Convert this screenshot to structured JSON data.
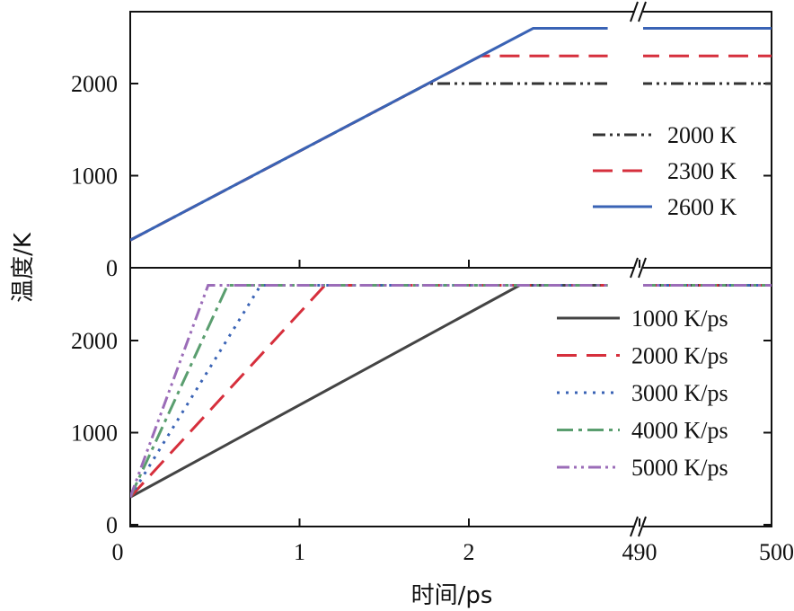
{
  "chart_data": [
    {
      "type": "line",
      "panel": "top",
      "xlabel": "",
      "ylabel": "温度/K",
      "ylim": [
        0,
        2850
      ],
      "yticks": [
        "0",
        "1000",
        "2000"
      ],
      "x_axis": "broken (0–2.8 ps, then 490–500 ps)",
      "legend_position": "right",
      "series": [
        {
          "name": "2000 K",
          "color": "#333333",
          "dash": "dash-dot-dot",
          "points": [
            [
              0,
              300
            ],
            [
              1.76,
              2000
            ],
            [
              500,
              2000
            ]
          ]
        },
        {
          "name": "2300 K",
          "color": "#d62f3c",
          "dash": "dash",
          "points": [
            [
              0,
              300
            ],
            [
              2.07,
              2300
            ],
            [
              500,
              2300
            ]
          ]
        },
        {
          "name": "2600 K",
          "color": "#3a63b5",
          "dash": "solid",
          "points": [
            [
              0,
              300
            ],
            [
              2.38,
              2600
            ],
            [
              500,
              2600
            ]
          ]
        }
      ]
    },
    {
      "type": "line",
      "panel": "bottom",
      "xlabel": "时间/ps",
      "ylabel": "温度/K",
      "ylim": [
        -100,
        2800
      ],
      "xticks": [
        "0",
        "1",
        "2",
        "490",
        "500"
      ],
      "yticks": [
        "0",
        "1000",
        "2000"
      ],
      "x_axis": "broken (0–2.8 ps, then 490–500 ps)",
      "legend_position": "right",
      "series": [
        {
          "name": "1000 K/ps",
          "color": "#444444",
          "dash": "solid",
          "points": [
            [
              0,
              300
            ],
            [
              2.3,
              2600
            ],
            [
              500,
              2600
            ]
          ]
        },
        {
          "name": "2000 K/ps",
          "color": "#d62f3c",
          "dash": "dash",
          "points": [
            [
              0,
              300
            ],
            [
              1.15,
              2600
            ],
            [
              500,
              2600
            ]
          ]
        },
        {
          "name": "3000 K/ps",
          "color": "#3a63b5",
          "dash": "dot",
          "points": [
            [
              0,
              300
            ],
            [
              0.77,
              2600
            ],
            [
              500,
              2600
            ]
          ]
        },
        {
          "name": "4000 K/ps",
          "color": "#5a9e6f",
          "dash": "dash-dot",
          "points": [
            [
              0,
              300
            ],
            [
              0.575,
              2600
            ],
            [
              500,
              2600
            ]
          ]
        },
        {
          "name": "5000 K/ps",
          "color": "#9b6cb8",
          "dash": "dash-dot-dot",
          "points": [
            [
              0,
              300
            ],
            [
              0.46,
              2600
            ],
            [
              500,
              2600
            ]
          ]
        }
      ]
    }
  ]
}
